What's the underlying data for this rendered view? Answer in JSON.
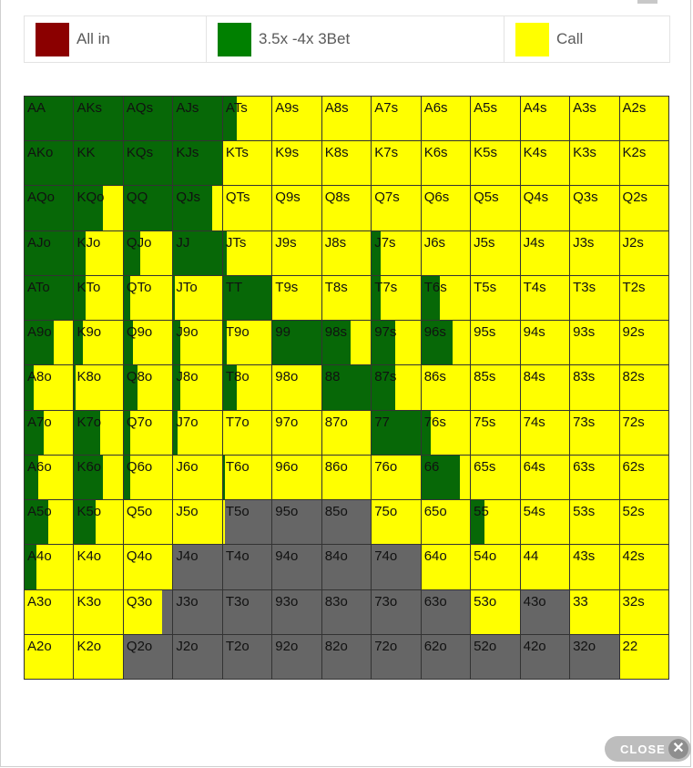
{
  "legend": [
    {
      "label": "All in",
      "color": "#8b0000"
    },
    {
      "label": "3.5x -4x 3Bet",
      "color": "#008000"
    },
    {
      "label": "Call",
      "color": "#ffff00"
    }
  ],
  "colors": {
    "raise": "#076807",
    "call": "#ffff00",
    "fold": "#666666"
  },
  "hand_matrix": [
    [
      "AA",
      "AKs",
      "AQs",
      "AJs",
      "ATs",
      "A9s",
      "A8s",
      "A7s",
      "A6s",
      "A5s",
      "A4s",
      "A3s",
      "A2s"
    ],
    [
      "AKo",
      "KK",
      "KQs",
      "KJs",
      "KTs",
      "K9s",
      "K8s",
      "K7s",
      "K6s",
      "K5s",
      "K4s",
      "K3s",
      "K2s"
    ],
    [
      "AQo",
      "KQo",
      "QQ",
      "QJs",
      "QTs",
      "Q9s",
      "Q8s",
      "Q7s",
      "Q6s",
      "Q5s",
      "Q4s",
      "Q3s",
      "Q2s"
    ],
    [
      "AJo",
      "KJo",
      "QJo",
      "JJ",
      "JTs",
      "J9s",
      "J8s",
      "J7s",
      "J6s",
      "J5s",
      "J4s",
      "J3s",
      "J2s"
    ],
    [
      "ATo",
      "KTo",
      "QTo",
      "JTo",
      "TT",
      "T9s",
      "T8s",
      "T7s",
      "T6s",
      "T5s",
      "T4s",
      "T3s",
      "T2s"
    ],
    [
      "A9o",
      "K9o",
      "Q9o",
      "J9o",
      "T9o",
      "99",
      "98s",
      "97s",
      "96s",
      "95s",
      "94s",
      "93s",
      "92s"
    ],
    [
      "A8o",
      "K8o",
      "Q8o",
      "J8o",
      "T8o",
      "98o",
      "88",
      "87s",
      "86s",
      "85s",
      "84s",
      "83s",
      "82s"
    ],
    [
      "A7o",
      "K7o",
      "Q7o",
      "J7o",
      "T7o",
      "97o",
      "87o",
      "77",
      "76s",
      "75s",
      "74s",
      "73s",
      "72s"
    ],
    [
      "A6o",
      "K6o",
      "Q6o",
      "J6o",
      "T6o",
      "96o",
      "86o",
      "76o",
      "66",
      "65s",
      "64s",
      "63s",
      "62s"
    ],
    [
      "A5o",
      "K5o",
      "Q5o",
      "J5o",
      "T5o",
      "95o",
      "85o",
      "75o",
      "65o",
      "55",
      "54s",
      "53s",
      "52s"
    ],
    [
      "A4o",
      "K4o",
      "Q4o",
      "J4o",
      "T4o",
      "94o",
      "84o",
      "74o",
      "64o",
      "54o",
      "44",
      "43s",
      "42s"
    ],
    [
      "A3o",
      "K3o",
      "Q3o",
      "J3o",
      "T3o",
      "93o",
      "83o",
      "73o",
      "63o",
      "53o",
      "43o",
      "33",
      "32s"
    ],
    [
      "A2o",
      "K2o",
      "Q2o",
      "J2o",
      "T2o",
      "92o",
      "82o",
      "72o",
      "62o",
      "52o",
      "42o",
      "32o",
      "22"
    ]
  ],
  "hand_actions": [
    [
      [
        1,
        0,
        0
      ],
      [
        1,
        0,
        0
      ],
      [
        1,
        0,
        0
      ],
      [
        1,
        0,
        0
      ],
      [
        0.3,
        0.7,
        0
      ],
      [
        0,
        1,
        0
      ],
      [
        0,
        1,
        0
      ],
      [
        0,
        1,
        0
      ],
      [
        0,
        1,
        0
      ],
      [
        0,
        1,
        0
      ],
      [
        0,
        1,
        0
      ],
      [
        0,
        1,
        0
      ],
      [
        0,
        1,
        0
      ]
    ],
    [
      [
        1,
        0,
        0
      ],
      [
        1,
        0,
        0
      ],
      [
        1,
        0,
        0
      ],
      [
        1,
        0,
        0
      ],
      [
        0,
        1,
        0
      ],
      [
        0,
        1,
        0
      ],
      [
        0,
        1,
        0
      ],
      [
        0,
        1,
        0
      ],
      [
        0,
        1,
        0
      ],
      [
        0,
        1,
        0
      ],
      [
        0,
        1,
        0
      ],
      [
        0,
        1,
        0
      ],
      [
        0,
        1,
        0
      ]
    ],
    [
      [
        1,
        0,
        0
      ],
      [
        0.6,
        0.4,
        0
      ],
      [
        1,
        0,
        0
      ],
      [
        0.8,
        0.2,
        0
      ],
      [
        0,
        1,
        0
      ],
      [
        0,
        1,
        0
      ],
      [
        0,
        1,
        0
      ],
      [
        0,
        1,
        0
      ],
      [
        0,
        1,
        0
      ],
      [
        0,
        1,
        0
      ],
      [
        0,
        1,
        0
      ],
      [
        0,
        1,
        0
      ],
      [
        0,
        1,
        0
      ]
    ],
    [
      [
        1,
        0,
        0
      ],
      [
        0.25,
        0.75,
        0
      ],
      [
        0.35,
        0.65,
        0
      ],
      [
        1,
        0,
        0
      ],
      [
        0.1,
        0.9,
        0
      ],
      [
        0,
        1,
        0
      ],
      [
        0,
        1,
        0
      ],
      [
        0.2,
        0.8,
        0
      ],
      [
        0,
        1,
        0
      ],
      [
        0,
        1,
        0
      ],
      [
        0,
        1,
        0
      ],
      [
        0,
        1,
        0
      ],
      [
        0,
        1,
        0
      ]
    ],
    [
      [
        1,
        0,
        0
      ],
      [
        0.25,
        0.75,
        0
      ],
      [
        0.15,
        0.85,
        0
      ],
      [
        0.05,
        0.95,
        0
      ],
      [
        1,
        0,
        0
      ],
      [
        0,
        1,
        0
      ],
      [
        0,
        1,
        0
      ],
      [
        0.2,
        0.8,
        0
      ],
      [
        0.4,
        0.6,
        0
      ],
      [
        0,
        1,
        0
      ],
      [
        0,
        1,
        0
      ],
      [
        0,
        1,
        0
      ],
      [
        0,
        1,
        0
      ]
    ],
    [
      [
        0.6,
        0.4,
        0
      ],
      [
        0.2,
        0.8,
        0
      ],
      [
        0.2,
        0.8,
        0
      ],
      [
        0.15,
        0.85,
        0
      ],
      [
        0.1,
        0.9,
        0
      ],
      [
        1,
        0,
        0
      ],
      [
        0.6,
        0.4,
        0
      ],
      [
        0.5,
        0.5,
        0
      ],
      [
        0.65,
        0.35,
        0
      ],
      [
        0,
        1,
        0
      ],
      [
        0,
        1,
        0
      ],
      [
        0,
        1,
        0
      ],
      [
        0,
        1,
        0
      ]
    ],
    [
      [
        0.2,
        0.8,
        0
      ],
      [
        0.05,
        0.95,
        0
      ],
      [
        0.3,
        0.7,
        0
      ],
      [
        0.15,
        0.85,
        0
      ],
      [
        0.3,
        0.7,
        0
      ],
      [
        0,
        1,
        0
      ],
      [
        1,
        0,
        0
      ],
      [
        0.5,
        0.5,
        0
      ],
      [
        0,
        1,
        0
      ],
      [
        0,
        1,
        0
      ],
      [
        0,
        1,
        0
      ],
      [
        0,
        1,
        0
      ],
      [
        0,
        1,
        0
      ]
    ],
    [
      [
        0.4,
        0.6,
        0
      ],
      [
        0.55,
        0.45,
        0
      ],
      [
        0.15,
        0.85,
        0
      ],
      [
        0.1,
        0.9,
        0
      ],
      [
        0,
        1,
        0
      ],
      [
        0,
        1,
        0
      ],
      [
        0,
        1,
        0
      ],
      [
        1,
        0,
        0
      ],
      [
        0.2,
        0.8,
        0
      ],
      [
        0,
        1,
        0
      ],
      [
        0,
        1,
        0
      ],
      [
        0,
        1,
        0
      ],
      [
        0,
        1,
        0
      ]
    ],
    [
      [
        0.3,
        0.7,
        0
      ],
      [
        0.6,
        0.4,
        0
      ],
      [
        0.15,
        0.85,
        0
      ],
      [
        0,
        1,
        0
      ],
      [
        0.05,
        0.95,
        0
      ],
      [
        0,
        1,
        0
      ],
      [
        0,
        1,
        0
      ],
      [
        0,
        1,
        0
      ],
      [
        0.8,
        0.2,
        0
      ],
      [
        0,
        1,
        0
      ],
      [
        0,
        1,
        0
      ],
      [
        0,
        1,
        0
      ],
      [
        0,
        1,
        0
      ]
    ],
    [
      [
        0.5,
        0.5,
        0
      ],
      [
        0.45,
        0.55,
        0
      ],
      [
        0,
        1,
        0
      ],
      [
        0,
        1,
        0
      ],
      [
        0,
        0.05,
        0.95
      ],
      [
        0,
        0,
        1
      ],
      [
        0,
        0,
        1
      ],
      [
        0,
        1,
        0
      ],
      [
        0,
        1,
        0
      ],
      [
        0.3,
        0.7,
        0
      ],
      [
        0,
        1,
        0
      ],
      [
        0,
        1,
        0
      ],
      [
        0,
        1,
        0
      ]
    ],
    [
      [
        0.25,
        0.75,
        0
      ],
      [
        0,
        1,
        0
      ],
      [
        0,
        1,
        0
      ],
      [
        0,
        0,
        1
      ],
      [
        0,
        0,
        1
      ],
      [
        0,
        0,
        1
      ],
      [
        0,
        0,
        1
      ],
      [
        0,
        0,
        1
      ],
      [
        0,
        1,
        0
      ],
      [
        0,
        1,
        0
      ],
      [
        0,
        1,
        0
      ],
      [
        0,
        1,
        0
      ],
      [
        0,
        1,
        0
      ]
    ],
    [
      [
        0,
        1,
        0
      ],
      [
        0,
        1,
        0
      ],
      [
        0,
        0.8,
        0.2
      ],
      [
        0,
        0,
        1
      ],
      [
        0,
        0,
        1
      ],
      [
        0,
        0,
        1
      ],
      [
        0,
        0,
        1
      ],
      [
        0,
        0,
        1
      ],
      [
        0,
        0,
        1
      ],
      [
        0,
        1,
        0
      ],
      [
        0,
        0,
        1
      ],
      [
        0,
        1,
        0
      ],
      [
        0,
        1,
        0
      ]
    ],
    [
      [
        0,
        1,
        0
      ],
      [
        0,
        1,
        0
      ],
      [
        0,
        0,
        1
      ],
      [
        0,
        0,
        1
      ],
      [
        0,
        0,
        1
      ],
      [
        0,
        0,
        1
      ],
      [
        0,
        0,
        1
      ],
      [
        0,
        0,
        1
      ],
      [
        0,
        0,
        1
      ],
      [
        0,
        0,
        1
      ],
      [
        0,
        0,
        1
      ],
      [
        0,
        0,
        1
      ],
      [
        0,
        1,
        0
      ]
    ]
  ],
  "close_label": "CLOSE",
  "close_icon": "✕"
}
